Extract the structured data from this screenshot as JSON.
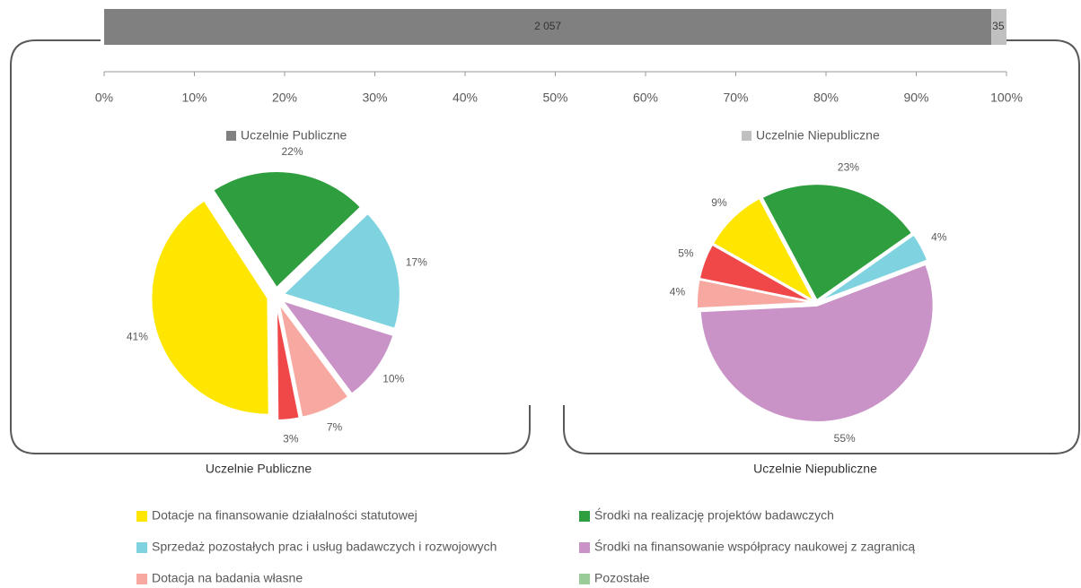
{
  "chart_data": [
    {
      "type": "bar",
      "stacked": "percent",
      "series": [
        {
          "name": "Uczelnie Publiczne",
          "color": "#808080",
          "values": [
            2057
          ],
          "value_labels": [
            "2 057"
          ]
        },
        {
          "name": "Uczelnie Niepubliczne",
          "color": "#c0c0c0",
          "values": [
            35
          ],
          "value_labels": [
            "35"
          ]
        }
      ],
      "xlim": [
        0,
        100
      ],
      "xticks": [
        {
          "value": 0,
          "label": "0%"
        },
        {
          "value": 10,
          "label": "10%"
        },
        {
          "value": 20,
          "label": "20%"
        },
        {
          "value": 30,
          "label": "30%"
        },
        {
          "value": 40,
          "label": "40%"
        },
        {
          "value": 50,
          "label": "50%"
        },
        {
          "value": 60,
          "label": "60%"
        },
        {
          "value": 70,
          "label": "70%"
        },
        {
          "value": 80,
          "label": "80%"
        },
        {
          "value": 90,
          "label": "90%"
        },
        {
          "value": 100,
          "label": "100%"
        }
      ]
    },
    {
      "type": "pie",
      "title": "Uczelnie Publiczne",
      "values": [
        22,
        17,
        10,
        7,
        3,
        41
      ],
      "value_labels": [
        "22%",
        "17%",
        "10%",
        "7%",
        "3%",
        "41%"
      ],
      "colors": [
        "#2e9e3e",
        "#7fd3e0",
        "#c993c8",
        "#f7a8a0",
        "#f04848",
        "#ffe600"
      ]
    },
    {
      "type": "pie",
      "title": "Uczelnie Niepubliczne",
      "values": [
        23,
        4,
        55,
        4,
        5,
        9
      ],
      "value_labels": [
        "23%",
        "4%",
        "55%",
        "4%",
        "5%",
        "9%"
      ],
      "colors": [
        "#2e9e3e",
        "#7fd3e0",
        "#c993c8",
        "#f7a8a0",
        "#f04848",
        "#ffe600"
      ]
    }
  ],
  "legend": [
    {
      "name": "Dotacje na finansowanie działalności statutowej",
      "color": "#ffe600"
    },
    {
      "name": "Środki na realizację projektów badawczych",
      "color": "#2e9e3e"
    },
    {
      "name": "Sprzedaż pozostałych prac i usług badawczych i rozwojowych",
      "color": "#7fd3e0"
    },
    {
      "name": "Środki na finansowanie współpracy naukowej z zagranicą",
      "color": "#c993c8"
    },
    {
      "name": "Dotacja na badania własne",
      "color": "#f7a8a0"
    },
    {
      "name": "Pozostałe",
      "color": "#99cc99"
    }
  ]
}
